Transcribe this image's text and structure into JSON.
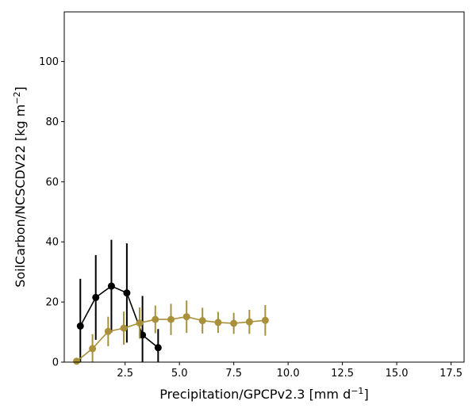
{
  "chart_data": {
    "type": "line",
    "xlabel_main": "Precipitation/GPCPv2.3 [mm d",
    "xlabel_sup": "−1",
    "xlabel_end": "]",
    "ylabel_main": "SoilCarbon/NCSCDV22 [kg m",
    "ylabel_sup": "−2",
    "ylabel_end": "]",
    "xlim": [
      -0.3,
      18.1
    ],
    "ylim": [
      0,
      116.5
    ],
    "x_ticks": [
      2.5,
      5.0,
      7.5,
      10.0,
      12.5,
      15.0,
      17.5
    ],
    "x_tick_labels": [
      "2.5",
      "5.0",
      "7.5",
      "10.0",
      "12.5",
      "15.0",
      "17.5"
    ],
    "y_ticks": [
      0,
      20,
      40,
      60,
      80,
      100
    ],
    "y_tick_labels": [
      "0",
      "20",
      "40",
      "60",
      "80",
      "100"
    ],
    "grid": false,
    "series": [
      {
        "color": "#000000",
        "x": [
          0.44,
          1.15,
          1.87,
          2.58,
          3.3,
          4.02
        ],
        "y": [
          12.0,
          21.5,
          25.3,
          23.0,
          9.0,
          4.8
        ],
        "err": [
          15.7,
          14.1,
          15.4,
          16.5,
          13.0,
          6.2
        ]
      },
      {
        "color": "#a8913a",
        "x": [
          0.27,
          1.0,
          1.72,
          2.44,
          3.17,
          3.89,
          4.61,
          5.33,
          6.06,
          6.78,
          7.5,
          8.22,
          8.95
        ],
        "y": [
          0.3,
          4.5,
          10.2,
          11.3,
          13.0,
          14.2,
          14.2,
          15.1,
          13.8,
          13.2,
          12.9,
          13.4,
          13.9
        ],
        "err": [
          1.0,
          4.8,
          4.9,
          5.5,
          5.2,
          4.6,
          5.2,
          5.4,
          4.3,
          3.5,
          3.5,
          4.0,
          5.1
        ]
      }
    ]
  }
}
